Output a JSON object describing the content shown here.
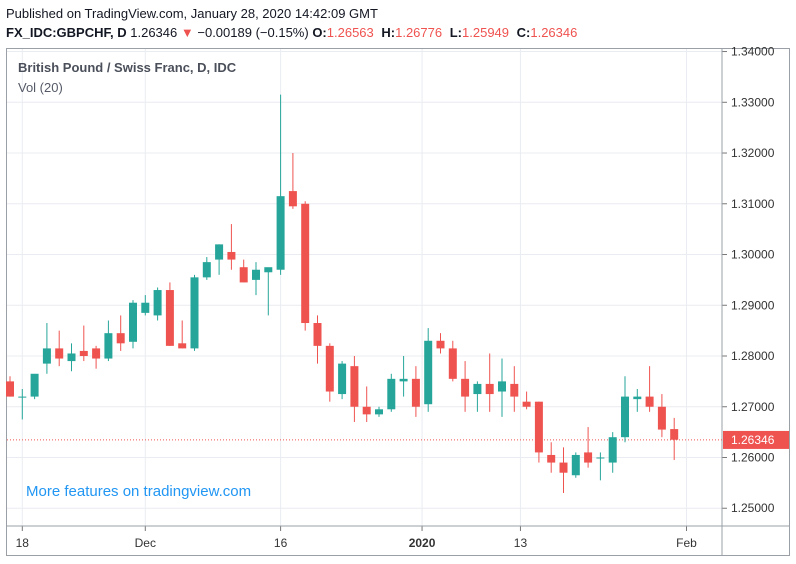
{
  "header": {
    "published": "Published on TradingView.com, January 28, 2020 14:42:09 GMT",
    "symbol": "FX_IDC:GBPCHF, D",
    "last": "1.26346",
    "arrow": "▼",
    "change": "−0.00189 (−0.15%)",
    "o_label": "O:",
    "o_value": "1.26563",
    "h_label": "H:",
    "h_value": "1.26776",
    "l_label": "L:",
    "l_value": "1.25949",
    "c_label": "C:",
    "c_value": "1.26346"
  },
  "legend": {
    "title": "British Pound / Swiss Franc, D, IDC",
    "volume": "Vol (20)"
  },
  "promo": "More features on tradingview.com",
  "colors": {
    "up": "#26a69a",
    "down": "#ef5350",
    "grid": "#e9ecf1",
    "axis_text": "#333333"
  },
  "chart_data": {
    "type": "candlestick",
    "title": "British Pound / Swiss Franc, D, IDC",
    "ylim": [
      1.2465,
      1.3405
    ],
    "y_ticks": [
      "1.25000",
      "1.26000",
      "1.27000",
      "1.28000",
      "1.29000",
      "1.30000",
      "1.31000",
      "1.32000",
      "1.33000",
      "1.34000"
    ],
    "x_ticks": [
      {
        "label": "18",
        "index": 1
      },
      {
        "label": "Dec",
        "index": 11
      },
      {
        "label": "16",
        "index": 22
      },
      {
        "label": "2020",
        "index": 33.5
      },
      {
        "label": "13",
        "index": 41.5
      },
      {
        "label": "Feb",
        "index": 55
      }
    ],
    "current_price": 1.26346,
    "current_label": "1.26346",
    "candles": [
      {
        "o": 1.275,
        "h": 1.276,
        "l": 1.272,
        "c": 1.272
      },
      {
        "o": 1.2718,
        "h": 1.2735,
        "l": 1.2675,
        "c": 1.272
      },
      {
        "o": 1.272,
        "h": 1.276,
        "l": 1.2715,
        "c": 1.2765
      },
      {
        "o": 1.2785,
        "h": 1.2865,
        "l": 1.2765,
        "c": 1.2815
      },
      {
        "o": 1.2815,
        "h": 1.285,
        "l": 1.278,
        "c": 1.2795
      },
      {
        "o": 1.279,
        "h": 1.2825,
        "l": 1.277,
        "c": 1.2805
      },
      {
        "o": 1.281,
        "h": 1.286,
        "l": 1.279,
        "c": 1.28
      },
      {
        "o": 1.2815,
        "h": 1.282,
        "l": 1.2775,
        "c": 1.2795
      },
      {
        "o": 1.2795,
        "h": 1.287,
        "l": 1.279,
        "c": 1.2845
      },
      {
        "o": 1.2845,
        "h": 1.288,
        "l": 1.281,
        "c": 1.2825
      },
      {
        "o": 1.2828,
        "h": 1.291,
        "l": 1.2815,
        "c": 1.2905
      },
      {
        "o": 1.2885,
        "h": 1.292,
        "l": 1.288,
        "c": 1.2905
      },
      {
        "o": 1.288,
        "h": 1.2935,
        "l": 1.287,
        "c": 1.293
      },
      {
        "o": 1.293,
        "h": 1.2945,
        "l": 1.282,
        "c": 1.282
      },
      {
        "o": 1.2825,
        "h": 1.287,
        "l": 1.2815,
        "c": 1.2815
      },
      {
        "o": 1.2815,
        "h": 1.296,
        "l": 1.281,
        "c": 1.2955
      },
      {
        "o": 1.2955,
        "h": 1.2995,
        "l": 1.295,
        "c": 1.2985
      },
      {
        "o": 1.299,
        "h": 1.302,
        "l": 1.296,
        "c": 1.302
      },
      {
        "o": 1.3005,
        "h": 1.306,
        "l": 1.297,
        "c": 1.299
      },
      {
        "o": 1.2975,
        "h": 1.299,
        "l": 1.2945,
        "c": 1.2945
      },
      {
        "o": 1.295,
        "h": 1.2985,
        "l": 1.292,
        "c": 1.297
      },
      {
        "o": 1.2965,
        "h": 1.297,
        "l": 1.288,
        "c": 1.2975
      },
      {
        "o": 1.297,
        "h": 1.3315,
        "l": 1.296,
        "c": 1.3115
      },
      {
        "o": 1.3125,
        "h": 1.32,
        "l": 1.309,
        "c": 1.3095
      },
      {
        "o": 1.31,
        "h": 1.3105,
        "l": 1.285,
        "c": 1.2865
      },
      {
        "o": 1.2865,
        "h": 1.288,
        "l": 1.2785,
        "c": 1.282
      },
      {
        "o": 1.282,
        "h": 1.2825,
        "l": 1.271,
        "c": 1.273
      },
      {
        "o": 1.2725,
        "h": 1.279,
        "l": 1.2715,
        "c": 1.2785
      },
      {
        "o": 1.278,
        "h": 1.28,
        "l": 1.267,
        "c": 1.27
      },
      {
        "o": 1.27,
        "h": 1.274,
        "l": 1.267,
        "c": 1.2685
      },
      {
        "o": 1.2685,
        "h": 1.27,
        "l": 1.268,
        "c": 1.2695
      },
      {
        "o": 1.2695,
        "h": 1.2765,
        "l": 1.269,
        "c": 1.2755
      },
      {
        "o": 1.275,
        "h": 1.28,
        "l": 1.272,
        "c": 1.2755
      },
      {
        "o": 1.2755,
        "h": 1.278,
        "l": 1.268,
        "c": 1.27
      },
      {
        "o": 1.2705,
        "h": 1.2855,
        "l": 1.269,
        "c": 1.283
      },
      {
        "o": 1.283,
        "h": 1.2845,
        "l": 1.2805,
        "c": 1.2815
      },
      {
        "o": 1.2815,
        "h": 1.283,
        "l": 1.275,
        "c": 1.2755
      },
      {
        "o": 1.2755,
        "h": 1.279,
        "l": 1.269,
        "c": 1.272
      },
      {
        "o": 1.2725,
        "h": 1.275,
        "l": 1.269,
        "c": 1.2745
      },
      {
        "o": 1.2745,
        "h": 1.2805,
        "l": 1.269,
        "c": 1.2725
      },
      {
        "o": 1.273,
        "h": 1.2795,
        "l": 1.268,
        "c": 1.275
      },
      {
        "o": 1.2745,
        "h": 1.278,
        "l": 1.269,
        "c": 1.272
      },
      {
        "o": 1.271,
        "h": 1.273,
        "l": 1.2695,
        "c": 1.27
      },
      {
        "o": 1.271,
        "h": 1.271,
        "l": 1.259,
        "c": 1.261
      },
      {
        "o": 1.2605,
        "h": 1.263,
        "l": 1.257,
        "c": 1.259
      },
      {
        "o": 1.259,
        "h": 1.262,
        "l": 1.253,
        "c": 1.257
      },
      {
        "o": 1.2565,
        "h": 1.261,
        "l": 1.256,
        "c": 1.2605
      },
      {
        "o": 1.261,
        "h": 1.266,
        "l": 1.258,
        "c": 1.259
      },
      {
        "o": 1.26,
        "h": 1.261,
        "l": 1.2555,
        "c": 1.26
      },
      {
        "o": 1.259,
        "h": 1.265,
        "l": 1.257,
        "c": 1.264
      },
      {
        "o": 1.264,
        "h": 1.276,
        "l": 1.263,
        "c": 1.272
      },
      {
        "o": 1.2715,
        "h": 1.2735,
        "l": 1.269,
        "c": 1.272
      },
      {
        "o": 1.272,
        "h": 1.278,
        "l": 1.269,
        "c": 1.27
      },
      {
        "o": 1.27,
        "h": 1.2725,
        "l": 1.264,
        "c": 1.2655
      },
      {
        "o": 1.2656,
        "h": 1.2678,
        "l": 1.2595,
        "c": 1.2635
      }
    ]
  }
}
